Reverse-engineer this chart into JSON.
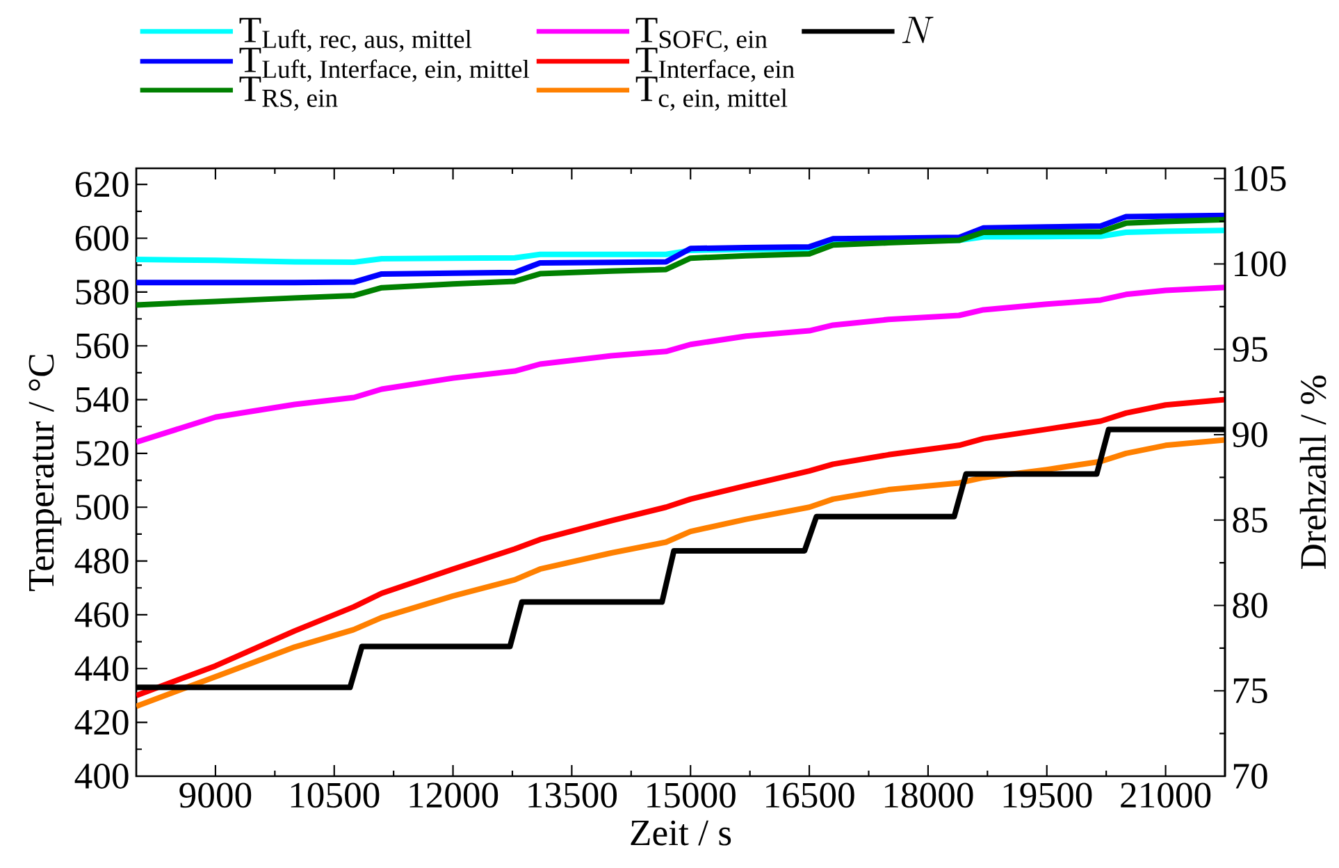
{
  "chart_data": {
    "type": "line",
    "xlabel": "Zeit / s",
    "ylabel": "Temperatur / °C",
    "y2label": "Drehzahl / %",
    "x": [
      8000,
      9000,
      10000,
      10750,
      11100,
      12000,
      12780,
      13100,
      14000,
      14690,
      15000,
      15700,
      16500,
      16800,
      17500,
      18390,
      18700,
      19500,
      20180,
      20500,
      21000,
      21750
    ],
    "series": [
      {
        "name": "\\text{T}_{\\text{Luft, rec, aus, mittel}}",
        "color": "#00ffff",
        "values": [
          592.1,
          591.8,
          591.2,
          591.1,
          592.4,
          592.6,
          592.7,
          594,
          594,
          594,
          595.5,
          595.8,
          596,
          598.8,
          599,
          599.2,
          600.5,
          600.6,
          600.7,
          602.2,
          602.6,
          602.9
        ]
      },
      {
        "name": "\\text{T}_{\\text{Luft, Interface, ein, mittel}}",
        "color": "#0000ff",
        "values": [
          583.5,
          583.5,
          583.5,
          583.7,
          586.7,
          587,
          587.3,
          590.8,
          591,
          591.2,
          596.2,
          596.5,
          596.8,
          599.8,
          600,
          600.3,
          603.8,
          604.2,
          604.5,
          608,
          608.2,
          608.5
        ]
      },
      {
        "name": "\\text{T}_{\\text{RS, ein}}",
        "color": "#008000",
        "values": [
          575.2,
          576.5,
          577.8,
          578.7,
          581.6,
          583,
          584,
          586.8,
          587.8,
          588.4,
          592.6,
          593.5,
          594.2,
          597.5,
          598.3,
          599.2,
          602.2,
          602.3,
          602.4,
          605.6,
          606.2,
          606.9
        ]
      },
      {
        "name": "\\text{T}_{\\text{SOFC, ein}}",
        "color": "#ff00ff",
        "values": [
          524.2,
          533.5,
          538.2,
          540.8,
          543.9,
          548,
          550.6,
          553.2,
          556.3,
          557.9,
          560.5,
          563.6,
          565.6,
          567.7,
          569.8,
          571.3,
          573.4,
          575.5,
          577,
          579.1,
          580.6,
          581.7
        ]
      },
      {
        "name": "\\text{T}_{\\text{Interface, ein}}",
        "color": "#ff0000",
        "values": [
          430,
          441,
          454,
          463,
          468,
          477,
          484.5,
          488,
          495,
          500,
          503,
          508,
          513.5,
          516,
          519.5,
          523,
          525.5,
          529,
          532,
          535,
          538,
          540
        ]
      },
      {
        "name": "\\text{T}_{\\text{c, ein, mittel}}",
        "color": "#ff8000",
        "values": [
          426,
          437,
          448,
          454.5,
          459,
          467,
          473,
          477,
          483,
          487,
          491,
          495.5,
          500,
          503,
          506.5,
          509,
          511,
          514,
          517,
          520,
          523,
          525
        ]
      },
      {
        "name": "N",
        "color": "#000000",
        "axis": "y2",
        "x": [
          8000,
          10700,
          10850,
          12720,
          12870,
          14640,
          14790,
          16440,
          16590,
          18330,
          18480,
          20130,
          20280,
          21750
        ],
        "values": [
          75.2,
          75.2,
          77.6,
          77.6,
          80.2,
          80.2,
          83.2,
          83.2,
          85.2,
          85.2,
          87.7,
          87.7,
          90.3,
          90.3
        ]
      }
    ],
    "xlim": [
      8000,
      21750
    ],
    "ylim": [
      400,
      626
    ],
    "y2lim": [
      70,
      105.6
    ],
    "xticks": [
      9000,
      10500,
      12000,
      13500,
      15000,
      16500,
      18000,
      19500,
      21000
    ],
    "yticks": [
      400,
      420,
      440,
      460,
      480,
      500,
      520,
      540,
      560,
      580,
      600,
      620
    ],
    "y2ticks": [
      70,
      75,
      80,
      85,
      90,
      95,
      100,
      105
    ],
    "legend": "top"
  }
}
